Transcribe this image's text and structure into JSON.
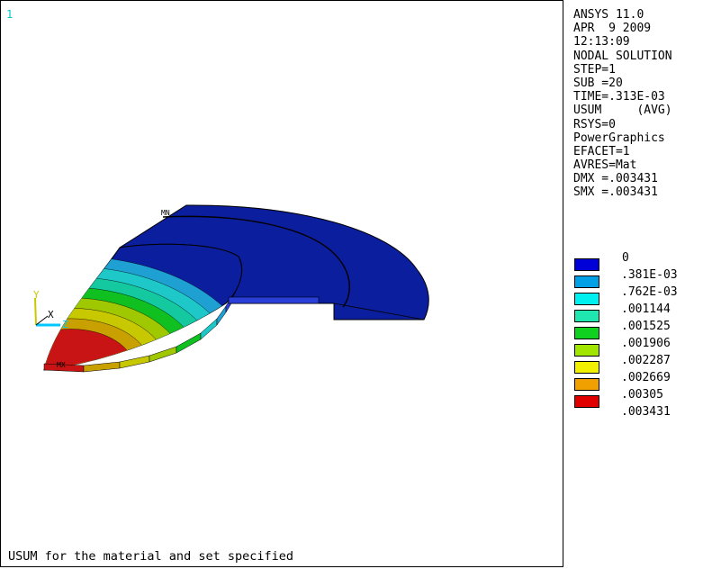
{
  "viewport": {
    "window_number": "1",
    "caption": "USUM for the material and set specified",
    "labels": {
      "min": "MN",
      "max": "MX"
    },
    "triad": {
      "y": "Y",
      "x": "X",
      "z": "Z"
    }
  },
  "info": {
    "lines": [
      "ANSYS 11.0",
      "APR  9 2009",
      "12:13:09",
      "NODAL SOLUTION",
      "STEP=1",
      "SUB =20",
      "TIME=.313E-03",
      "USUM     (AVG)",
      "RSYS=0",
      "PowerGraphics",
      "EFACET=1",
      "AVRES=Mat",
      "DMX =.003431",
      "SMX =.003431"
    ]
  },
  "legend": {
    "labels": [
      "0",
      ".381E-03",
      ".762E-03",
      ".001144",
      ".001525",
      ".001906",
      ".002287",
      ".002669",
      ".00305",
      ".003431"
    ],
    "colors": [
      "#0000d8",
      "#00a0e6",
      "#00f0f0",
      "#20e6b0",
      "#10d020",
      "#a0e600",
      "#f0f000",
      "#f0a000",
      "#e00000"
    ]
  },
  "colors": {
    "contour": [
      "#0a1e9e",
      "#1ea0d2",
      "#1ec8c8",
      "#14c8a0",
      "#10c020",
      "#a0c800",
      "#c8c800",
      "#c8a000",
      "#c81414"
    ],
    "rim": [
      "#c81414",
      "#c8a000",
      "#c8c800",
      "#a0c800",
      "#10c020",
      "#1ec8c8",
      "#1ea0d2",
      "#2a3ed8"
    ],
    "triad": {
      "x": "#000000",
      "y": "#c8c800",
      "z": "#00c8ff"
    }
  }
}
